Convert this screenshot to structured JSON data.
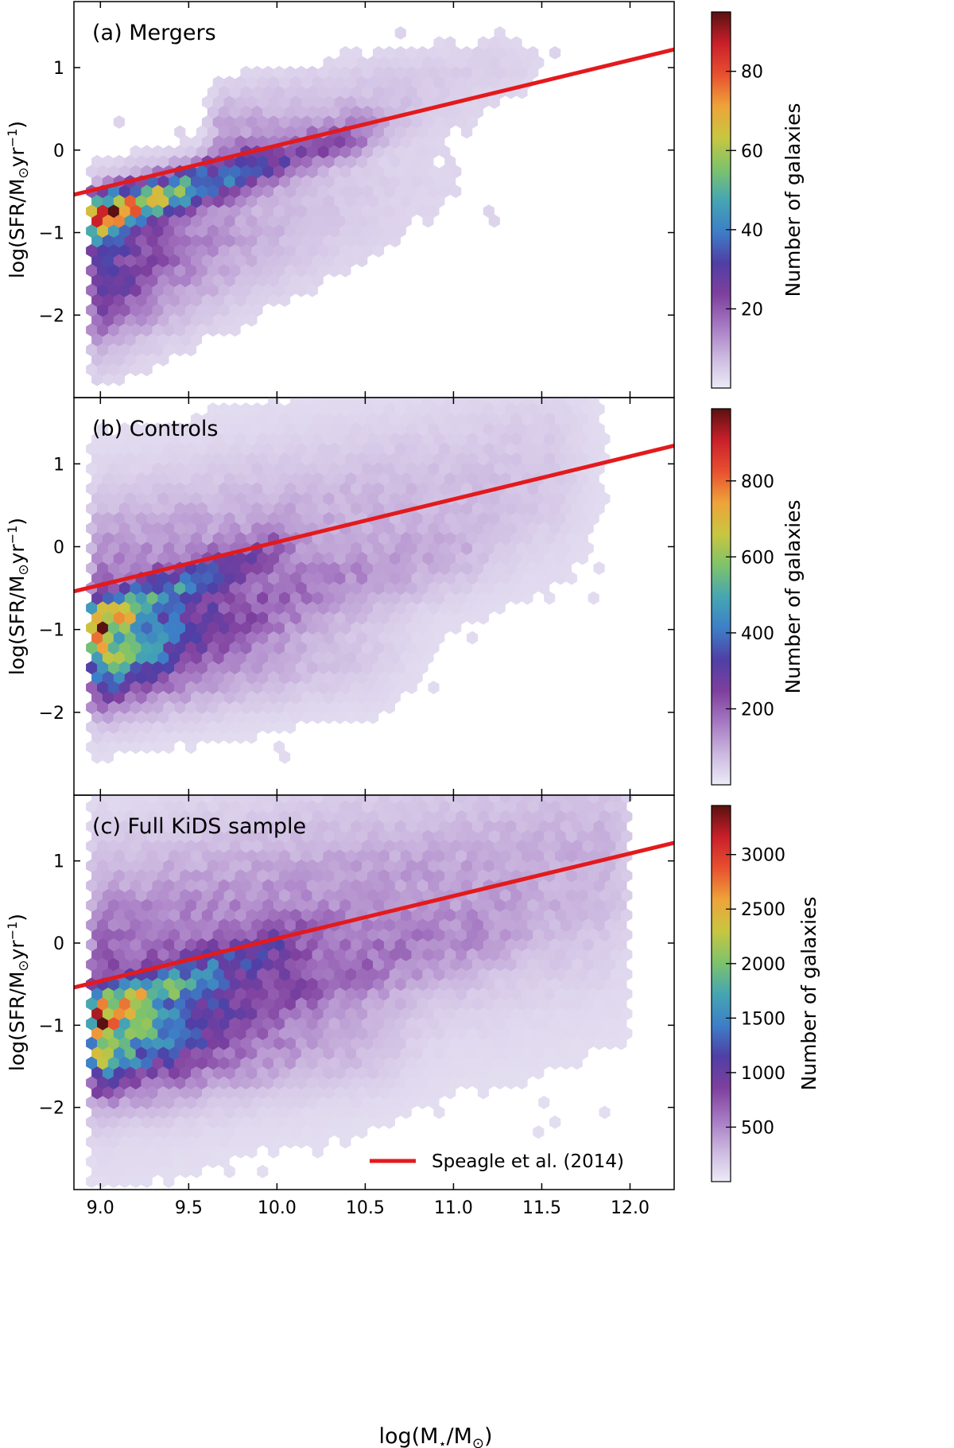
{
  "figure": {
    "x_label_text": "log(M",
    "x_label_sub": "⋆",
    "x_label_mid": "/M",
    "x_label_sun": "⊙",
    "x_label_end": ")",
    "y_label_pre": "log(SFR/M",
    "y_label_sun": "⊙",
    "y_label_yr": "yr",
    "y_label_exp": "−1",
    "y_label_end": ")",
    "colorbar_label": "Number of galaxies",
    "legend_label": "Speagle et al. (2014)"
  },
  "colors": {
    "line": "#e31a1c",
    "colormap": [
      "#ecebf7",
      "#cbb7df",
      "#a578c2",
      "#7e3f9e",
      "#4f3fa6",
      "#3d7fc8",
      "#45a6b2",
      "#7ec36b",
      "#c8c640",
      "#eea33a",
      "#e8502f",
      "#c91f2a",
      "#5a1111"
    ]
  },
  "chart_data": [
    {
      "type": "hexbin",
      "title": "(a) Mergers",
      "xlabel": "log(M⋆/M⊙)",
      "ylabel": "log(SFR/M⊙yr⁻¹)",
      "xlim": [
        8.85,
        12.25
      ],
      "ylim": [
        -3.0,
        1.8
      ],
      "xticks": [
        9.0,
        9.5,
        10.0,
        10.5,
        11.0,
        11.5,
        12.0
      ],
      "yticks": [
        -2,
        -1,
        0,
        1
      ],
      "ytick_labels": [
        "−2",
        "−1",
        "0",
        "1"
      ],
      "colorbar": {
        "label": "Number of galaxies",
        "min": 0,
        "max": 95,
        "ticks": [
          20,
          40,
          60,
          80
        ]
      },
      "main_sequence_line": {
        "name": "Speagle et al. (2014)",
        "x": [
          8.85,
          12.25
        ],
        "y": [
          -0.54,
          1.22
        ]
      },
      "density_model": {
        "total": 3200,
        "components": [
          {
            "weight": 0.85,
            "x_start": 9.0,
            "x_end": 10.4,
            "y_at_start": -0.8,
            "slope": 0.68,
            "sigma": 0.18,
            "decay": 1.2
          },
          {
            "weight": 0.35,
            "x_start": 9.0,
            "x_end": 11.0,
            "y_at_start": -1.5,
            "slope": 0.6,
            "sigma": 0.55,
            "decay": 1.6
          },
          {
            "weight": 0.1,
            "x_start": 9.7,
            "x_end": 11.3,
            "y_at_start": 0.2,
            "slope": 0.5,
            "sigma": 0.35,
            "decay": 0.9
          }
        ]
      }
    },
    {
      "type": "hexbin",
      "title": "(b) Controls",
      "xlabel": "log(M⋆/M⊙)",
      "ylabel": "log(SFR/M⊙yr⁻¹)",
      "xlim": [
        8.85,
        12.25
      ],
      "ylim": [
        -3.0,
        1.8
      ],
      "xticks": [
        9.0,
        9.5,
        10.0,
        10.5,
        11.0,
        11.5,
        12.0
      ],
      "yticks": [
        -2,
        -1,
        0,
        1
      ],
      "ytick_labels": [
        "−2",
        "−1",
        "0",
        "1"
      ],
      "colorbar": {
        "label": "Number of galaxies",
        "min": 0,
        "max": 990,
        "ticks": [
          200,
          400,
          600,
          800
        ]
      },
      "main_sequence_line": {
        "name": "Speagle et al. (2014)",
        "x": [
          8.85,
          12.25
        ],
        "y": [
          -0.54,
          1.22
        ]
      },
      "density_model": {
        "total": 45000,
        "components": [
          {
            "weight": 0.9,
            "x_start": 9.0,
            "x_end": 9.9,
            "y_at_start": -0.9,
            "slope": 0.9,
            "sigma": 0.18,
            "decay": 1.6
          },
          {
            "weight": 0.55,
            "x_start": 9.0,
            "x_end": 11.0,
            "y_at_start": -1.3,
            "slope": 0.6,
            "sigma": 0.3,
            "decay": 1.0
          },
          {
            "weight": 0.4,
            "x_start": 9.0,
            "x_end": 10.5,
            "y_at_start": -1.5,
            "slope": 0.1,
            "sigma": 0.35,
            "decay": 1.3
          },
          {
            "weight": 0.25,
            "x_start": 9.0,
            "x_end": 11.5,
            "y_at_start": -0.5,
            "slope": 0.55,
            "sigma": 0.7,
            "decay": 0.5
          }
        ]
      }
    },
    {
      "type": "hexbin",
      "title": "(c) Full KiDS sample",
      "xlabel": "log(M⋆/M⊙)",
      "ylabel": "log(SFR/M⊙yr⁻¹)",
      "xlim": [
        8.85,
        12.25
      ],
      "ylim": [
        -3.0,
        1.8
      ],
      "xticks": [
        9.0,
        9.5,
        10.0,
        10.5,
        11.0,
        11.5,
        12.0
      ],
      "xtick_labels": [
        "9.0",
        "9.5",
        "10.0",
        "10.5",
        "11.0",
        "11.5",
        "12.0"
      ],
      "yticks": [
        -2,
        -1,
        0,
        1
      ],
      "ytick_labels": [
        "−2",
        "−1",
        "0",
        "1"
      ],
      "colorbar": {
        "label": "Number of galaxies",
        "min": 0,
        "max": 3450,
        "ticks": [
          500,
          1000,
          1500,
          2000,
          2500,
          3000
        ]
      },
      "main_sequence_line": {
        "name": "Speagle et al. (2014)",
        "x": [
          8.85,
          12.25
        ],
        "y": [
          -0.54,
          1.22
        ]
      },
      "legend": {
        "label": "Speagle et al. (2014)",
        "placement": "lower-right"
      },
      "density_model": {
        "total": 160000,
        "components": [
          {
            "weight": 0.9,
            "x_start": 9.0,
            "x_end": 10.0,
            "y_at_start": -0.85,
            "slope": 0.85,
            "sigma": 0.18,
            "decay": 1.4
          },
          {
            "weight": 0.55,
            "x_start": 9.0,
            "x_end": 11.2,
            "y_at_start": -1.2,
            "slope": 0.6,
            "sigma": 0.3,
            "decay": 0.9
          },
          {
            "weight": 0.45,
            "x_start": 9.0,
            "x_end": 10.5,
            "y_at_start": -1.4,
            "slope": 0.1,
            "sigma": 0.35,
            "decay": 1.2
          },
          {
            "weight": 0.35,
            "x_start": 9.0,
            "x_end": 11.8,
            "y_at_start": -0.4,
            "slope": 0.5,
            "sigma": 0.9,
            "decay": 0.35
          }
        ]
      }
    }
  ]
}
